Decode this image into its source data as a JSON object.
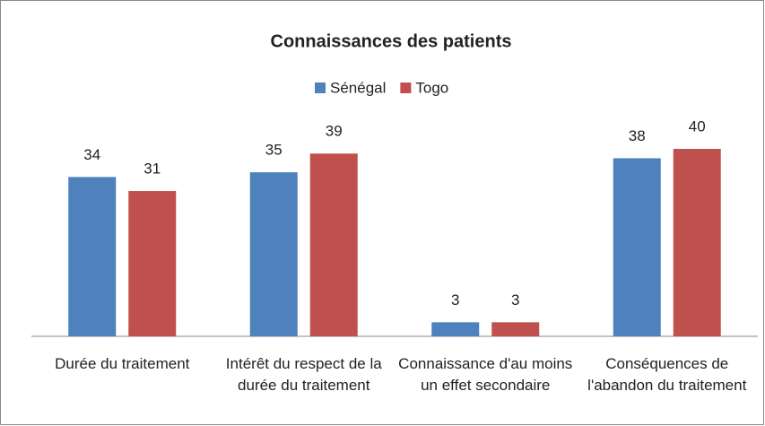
{
  "chart_data": {
    "type": "bar",
    "title": "Connaissances des patients",
    "categories": [
      "Durée du traitement",
      "Intérêt du respect de la durée du traitement",
      "Connaissance d'au moins un effet secondaire",
      "Conséquences de l'abandon du traitement"
    ],
    "series": [
      {
        "name": "Sénégal",
        "color": "#4f81bd",
        "values": [
          34,
          35,
          3,
          38
        ]
      },
      {
        "name": "Togo",
        "color": "#c0504d",
        "values": [
          31,
          39,
          3,
          40
        ]
      }
    ],
    "legend": "top"
  }
}
